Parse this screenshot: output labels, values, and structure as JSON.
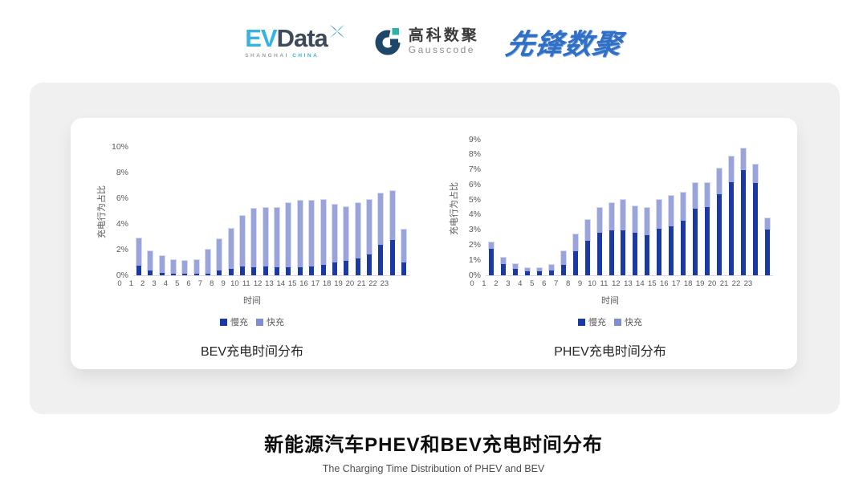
{
  "header": {
    "evdata": {
      "ev": "EV",
      "data": "Data",
      "sub_gray": "SHANGHAI",
      "sub_blue": "CHINA"
    },
    "gausscode": {
      "cn": "高科数聚",
      "en": "Gausscode"
    },
    "xianfeng": {
      "text": "先锋数聚"
    }
  },
  "colors": {
    "slow_charge": "#1a39a3",
    "fast_charge": "#9aa4da",
    "fast_charge_legend": "#7f8dd3",
    "axis_line": "#d9d9d9",
    "panel_gray": "#f0f0f0"
  },
  "chart_data": [
    {
      "type": "bar",
      "stacked": true,
      "title": "BEV充电时间分布",
      "xlabel": "时间",
      "ylabel": "充电行为占比",
      "categories": [
        "0",
        "1",
        "2",
        "3",
        "4",
        "5",
        "6",
        "7",
        "8",
        "9",
        "10",
        "11",
        "12",
        "13",
        "14",
        "15",
        "16",
        "17",
        "18",
        "19",
        "20",
        "21",
        "22",
        "23"
      ],
      "series": [
        {
          "name": "慢充",
          "color": "#1a39a3",
          "legend_color": "#1a39a3",
          "values": [
            0.75,
            0.35,
            0.2,
            0.1,
            0.1,
            0.1,
            0.15,
            0.35,
            0.5,
            0.7,
            0.65,
            0.7,
            0.6,
            0.6,
            0.65,
            0.7,
            0.8,
            1.0,
            1.1,
            1.3,
            1.6,
            2.4,
            2.75,
            1.0
          ]
        },
        {
          "name": "快充",
          "color": "#9aa4da",
          "legend_color": "#7f8dd3",
          "values": [
            2.15,
            1.55,
            1.3,
            1.1,
            1.0,
            1.1,
            1.85,
            2.45,
            3.1,
            3.9,
            4.55,
            4.55,
            4.65,
            5.05,
            5.15,
            5.1,
            5.05,
            4.5,
            4.2,
            4.3,
            4.3,
            3.95,
            3.8,
            2.55
          ]
        }
      ],
      "ylim": [
        0,
        10
      ],
      "ytick_step": 2,
      "ytick_suffix": "%",
      "grid": false,
      "legend_position": "bottom"
    },
    {
      "type": "bar",
      "stacked": true,
      "title": "PHEV充电时间分布",
      "xlabel": "时间",
      "ylabel": "充电行为占比",
      "categories": [
        "0",
        "1",
        "2",
        "3",
        "4",
        "5",
        "6",
        "7",
        "8",
        "9",
        "10",
        "11",
        "12",
        "13",
        "14",
        "15",
        "16",
        "17",
        "18",
        "19",
        "20",
        "21",
        "22",
        "23"
      ],
      "series": [
        {
          "name": "慢充",
          "color": "#1a39a3",
          "legend_color": "#1a39a3",
          "values": [
            1.75,
            0.75,
            0.45,
            0.25,
            0.25,
            0.3,
            0.7,
            1.6,
            2.3,
            2.8,
            3.0,
            3.0,
            2.8,
            2.65,
            3.1,
            3.25,
            3.6,
            4.4,
            4.55,
            5.4,
            6.2,
            7.0,
            6.15,
            3.05
          ]
        },
        {
          "name": "快充",
          "color": "#9aa4da",
          "legend_color": "#7f8dd3",
          "values": [
            0.45,
            0.4,
            0.3,
            0.25,
            0.25,
            0.4,
            0.9,
            1.1,
            1.35,
            1.7,
            1.8,
            2.0,
            1.8,
            1.85,
            1.9,
            2.0,
            1.9,
            1.7,
            1.55,
            1.7,
            1.7,
            1.4,
            1.2,
            0.75
          ]
        }
      ],
      "ylim": [
        0,
        9
      ],
      "ytick_step": 1,
      "ytick_suffix": "%",
      "grid": false,
      "legend_position": "bottom"
    }
  ],
  "footer": {
    "title": "新能源汽车PHEV和BEV充电时间分布",
    "subtitle": "The Charging Time Distribution of PHEV and BEV"
  }
}
